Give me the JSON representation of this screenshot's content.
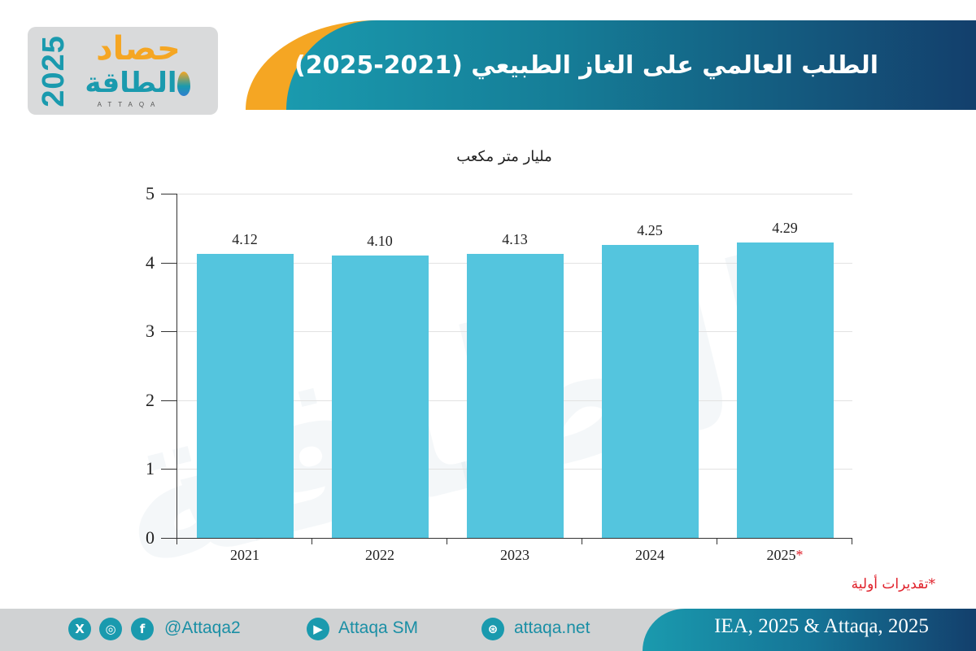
{
  "header": {
    "title": "الطلب العالمي على الغاز الطبيعي (2021-2025)",
    "logo": {
      "year": "2025",
      "word_top": "حصاد",
      "word_bottom": "الطاقة",
      "subtitle": "ATTAQA"
    }
  },
  "watermark": "الطاقة",
  "chart_data": {
    "type": "bar",
    "title": "الطلب العالمي على الغاز الطبيعي (2021-2025)",
    "ylabel": "مليار متر مكعب",
    "xlabel": "",
    "categories": [
      "2021",
      "2022",
      "2023",
      "2024",
      "2025*"
    ],
    "values": [
      4.12,
      4.1,
      4.13,
      4.25,
      4.29
    ],
    "value_labels": [
      "4.12",
      "4.10",
      "4.13",
      "4.25",
      "4.29"
    ],
    "ylim": [
      0,
      5
    ],
    "yticks": [
      "0",
      "1",
      "2",
      "3",
      "4",
      "5"
    ],
    "grid": true,
    "bar_color": "#54c5de",
    "annotation": "*تقديرات أولية"
  },
  "chart": {
    "unit_label": "مليار متر مكعب",
    "footnote": "*تقديرات أولية",
    "star_color": "#e0202a"
  },
  "footer": {
    "social_handle": "@Attaqa2",
    "youtube": "Attaqa SM",
    "website": "attaqa.net",
    "source": "IEA, 2025 & Attaqa, 2025",
    "icons": {
      "x": "X",
      "instagram": "◎",
      "facebook": "f",
      "youtube": "▶",
      "web": "⊛"
    }
  },
  "colors": {
    "accent_teal": "#1a9aae",
    "accent_orange": "#f5a623",
    "dark_blue": "#133f6c",
    "footnote_red": "#e0202a"
  }
}
